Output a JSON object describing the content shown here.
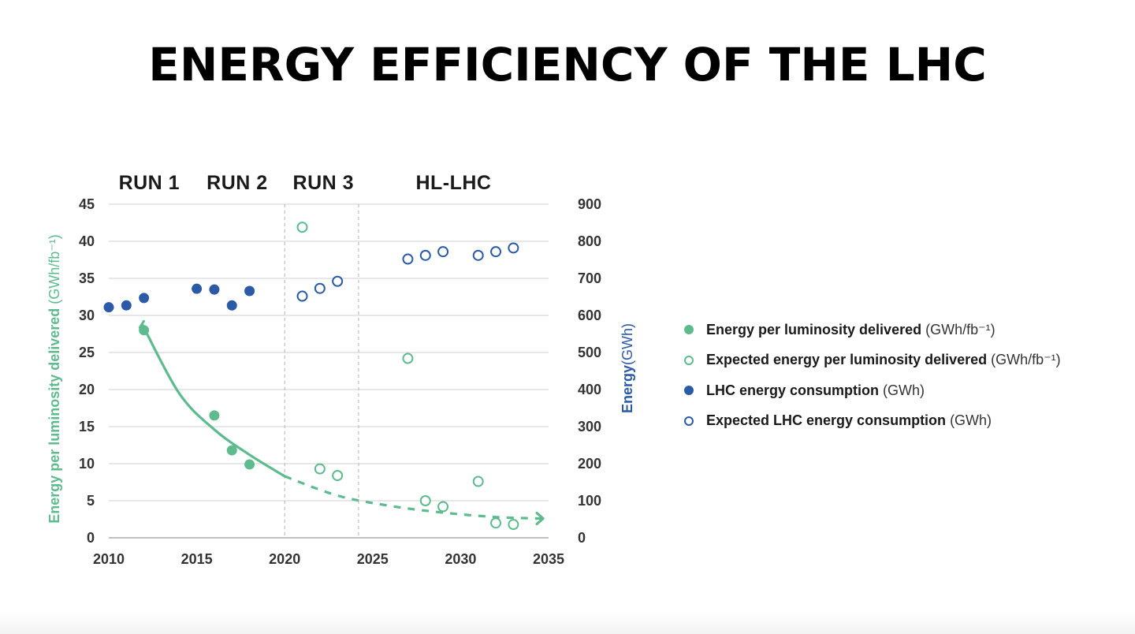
{
  "title": "ENERGY EFFICIENCY OF THE LHC",
  "colors": {
    "green": "#5dbb8e",
    "blue": "#2b5aa6",
    "grid": "#cfcfcf",
    "text": "#333333"
  },
  "chart_data": {
    "type": "scatter",
    "x_ticks": [
      2010,
      2015,
      2020,
      2025,
      2030,
      2035
    ],
    "xlim": [
      2010,
      2035
    ],
    "y_left": {
      "label": "Energy per luminosity delivered",
      "unit": "(GWh/fb⁻¹)",
      "ticks": [
        0,
        5,
        10,
        15,
        20,
        25,
        30,
        35,
        40,
        45
      ],
      "ylim": [
        0,
        45
      ]
    },
    "y_right": {
      "label": "Energy",
      "unit": "(GWh)",
      "ticks": [
        0,
        100,
        200,
        300,
        400,
        500,
        600,
        700,
        800,
        900
      ],
      "ylim": [
        0,
        900
      ]
    },
    "periods": [
      {
        "label": "RUN 1",
        "center": 2012.3
      },
      {
        "label": "RUN 2",
        "center": 2017.3
      },
      {
        "label": "RUN 3",
        "center": 2022.2
      },
      {
        "label": "HL-LHC",
        "center": 2029.6
      }
    ],
    "period_dividers": [
      2020,
      2024.2
    ],
    "series": [
      {
        "name": "Energy per luminosity delivered",
        "unit": "(GWh/fb⁻¹)",
        "axis": "left",
        "filled": true,
        "color": "#5dbb8e",
        "x": [
          2012,
          2016,
          2017,
          2018
        ],
        "y": [
          28,
          16.5,
          11.8,
          9.9
        ]
      },
      {
        "name": "Expected energy per luminosity delivered",
        "unit": "(GWh/fb⁻¹)",
        "axis": "left",
        "filled": false,
        "color": "#5dbb8e",
        "x": [
          2021,
          2022,
          2023,
          2027,
          2028,
          2029,
          2031,
          2032,
          2033
        ],
        "y": [
          41.9,
          9.3,
          8.4,
          24.2,
          5.0,
          4.2,
          7.6,
          2.0,
          1.8
        ]
      },
      {
        "name": "LHC energy consumption",
        "unit": "(GWh)",
        "axis": "right",
        "filled": true,
        "color": "#2b5aa6",
        "x": [
          2010,
          2011,
          2012,
          2015,
          2016,
          2017,
          2018
        ],
        "y": [
          622,
          627,
          647,
          672,
          670,
          627,
          666
        ]
      },
      {
        "name": "Expected LHC energy consumption",
        "unit": "(GWh)",
        "axis": "right",
        "filled": false,
        "color": "#2b5aa6",
        "x": [
          2021,
          2022,
          2023,
          2027,
          2028,
          2029,
          2031,
          2032,
          2033
        ],
        "y": [
          652,
          673,
          692,
          752,
          762,
          772,
          762,
          772,
          782
        ]
      }
    ],
    "trend": {
      "solid": [
        [
          2011.9,
          28.8
        ],
        [
          2014,
          19.5
        ],
        [
          2016,
          14.6
        ],
        [
          2018,
          11.2
        ],
        [
          2020,
          8.3
        ]
      ],
      "dashed": [
        [
          2020,
          8.3
        ],
        [
          2023,
          5.7
        ],
        [
          2026,
          4.3
        ],
        [
          2029,
          3.4
        ],
        [
          2032,
          2.8
        ],
        [
          2034.6,
          2.6
        ]
      ]
    }
  }
}
